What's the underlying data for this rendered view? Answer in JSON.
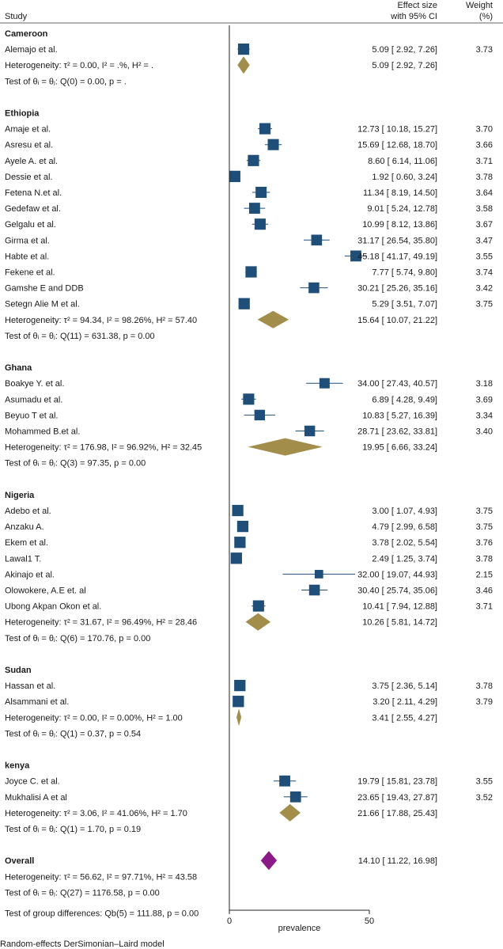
{
  "chart_data": {
    "type": "forest",
    "header": {
      "study": "Study",
      "effect_line1": "Effect size",
      "effect_line2": "with 95% CI",
      "weight_line1": "Weight",
      "weight_line2": "(%)"
    },
    "xaxis": {
      "label": "prevalence",
      "range": [
        0,
        50
      ],
      "ticks": [
        0,
        50
      ],
      "tick_labels": [
        "0",
        "50"
      ]
    },
    "colors": {
      "box": "#1f4e79",
      "ci_line": "#1f4e79",
      "subgroup_diamond": "#a38d4b",
      "overall_diamond": "#8b1a89"
    },
    "groups": [
      {
        "name": "Cameroon",
        "studies": [
          {
            "study": "Alemajo et al.",
            "es": 5.09,
            "lo": 2.92,
            "hi": 7.26,
            "ci_text": "5.09 [  2.92,   7.26]",
            "weight": "3.73"
          }
        ],
        "summary": {
          "es": 5.09,
          "lo": 2.92,
          "hi": 7.26,
          "ci_text": "5.09 [  2.92,   7.26]"
        },
        "heterogeneity": "Heterogeneity: τ² = 0.00, I² = .%, H² = .",
        "test": "Test of θᵢ = θⱼ: Q(0) = 0.00, p = ."
      },
      {
        "name": "Ethiopia",
        "studies": [
          {
            "study": "Amaje et al.",
            "es": 12.73,
            "lo": 10.18,
            "hi": 15.27,
            "ci_text": "12.73 [ 10.18,  15.27]",
            "weight": "3.70"
          },
          {
            "study": "Asresu et al.",
            "es": 15.69,
            "lo": 12.68,
            "hi": 18.7,
            "ci_text": "15.69 [ 12.68,  18.70]",
            "weight": "3.66"
          },
          {
            "study": "Ayele A. et al.",
            "es": 8.6,
            "lo": 6.14,
            "hi": 11.06,
            "ci_text": "8.60 [  6.14,  11.06]",
            "weight": "3.71"
          },
          {
            "study": "Dessie et al.",
            "es": 1.92,
            "lo": 0.6,
            "hi": 3.24,
            "ci_text": "1.92 [  0.60,   3.24]",
            "weight": "3.78"
          },
          {
            "study": "Fetena N.et al.",
            "es": 11.34,
            "lo": 8.19,
            "hi": 14.5,
            "ci_text": "11.34 [  8.19,  14.50]",
            "weight": "3.64"
          },
          {
            "study": "Gedefaw et al.",
            "es": 9.01,
            "lo": 5.24,
            "hi": 12.78,
            "ci_text": "9.01 [  5.24,  12.78]",
            "weight": "3.58"
          },
          {
            "study": "Gelgalu et al.",
            "es": 10.99,
            "lo": 8.12,
            "hi": 13.86,
            "ci_text": "10.99 [  8.12,  13.86]",
            "weight": "3.67"
          },
          {
            "study": "Girma et al.",
            "es": 31.17,
            "lo": 26.54,
            "hi": 35.8,
            "ci_text": "31.17 [ 26.54,  35.80]",
            "weight": "3.47"
          },
          {
            "study": "Habte et al.",
            "es": 45.18,
            "lo": 41.17,
            "hi": 49.19,
            "ci_text": "45.18 [ 41.17,  49.19]",
            "weight": "3.55"
          },
          {
            "study": "Fekene et al.",
            "es": 7.77,
            "lo": 5.74,
            "hi": 9.8,
            "ci_text": "7.77 [  5.74,   9.80]",
            "weight": "3.74"
          },
          {
            "study": "Gamshe E and DDB",
            "es": 30.21,
            "lo": 25.26,
            "hi": 35.16,
            "ci_text": "30.21 [ 25.26,  35.16]",
            "weight": "3.42"
          },
          {
            "study": "Setegn Alie M et al.",
            "es": 5.29,
            "lo": 3.51,
            "hi": 7.07,
            "ci_text": "5.29 [  3.51,   7.07]",
            "weight": "3.75"
          }
        ],
        "summary": {
          "es": 15.64,
          "lo": 10.07,
          "hi": 21.22,
          "ci_text": "15.64 [ 10.07,  21.22]"
        },
        "heterogeneity": "Heterogeneity: τ² = 94.34, I² = 98.26%, H² = 57.40",
        "test": "Test of θᵢ = θⱼ: Q(11) = 631.38, p = 0.00"
      },
      {
        "name": "Ghana",
        "studies": [
          {
            "study": "Boakye Y. et al.",
            "es": 34.0,
            "lo": 27.43,
            "hi": 40.57,
            "ci_text": "34.00 [ 27.43,  40.57]",
            "weight": "3.18"
          },
          {
            "study": "Asumadu et al.",
            "es": 6.89,
            "lo": 4.28,
            "hi": 9.49,
            "ci_text": "6.89 [  4.28,   9.49]",
            "weight": "3.69"
          },
          {
            "study": "Beyuo T et al.",
            "es": 10.83,
            "lo": 5.27,
            "hi": 16.39,
            "ci_text": "10.83 [  5.27,  16.39]",
            "weight": "3.34"
          },
          {
            "study": "Mohammed B.et al.",
            "es": 28.71,
            "lo": 23.62,
            "hi": 33.81,
            "ci_text": "28.71 [ 23.62,  33.81]",
            "weight": "3.40"
          }
        ],
        "summary": {
          "es": 19.95,
          "lo": 6.66,
          "hi": 33.24,
          "ci_text": "19.95 [  6.66,  33.24]"
        },
        "heterogeneity": "Heterogeneity: τ² = 176.98, I² = 96.92%, H² = 32.45",
        "test": "Test of θᵢ = θⱼ: Q(3) = 97.35, p = 0.00"
      },
      {
        "name": "Nigeria",
        "studies": [
          {
            "study": "Adebo et al.",
            "es": 3.0,
            "lo": 1.07,
            "hi": 4.93,
            "ci_text": "3.00 [  1.07,   4.93]",
            "weight": "3.75"
          },
          {
            "study": "Anzaku A.",
            "es": 4.79,
            "lo": 2.99,
            "hi": 6.58,
            "ci_text": "4.79 [  2.99,   6.58]",
            "weight": "3.75"
          },
          {
            "study": "Ekem et al.",
            "es": 3.78,
            "lo": 2.02,
            "hi": 5.54,
            "ci_text": "3.78 [  2.02,   5.54]",
            "weight": "3.76"
          },
          {
            "study": "Lawal1 T.",
            "es": 2.49,
            "lo": 1.25,
            "hi": 3.74,
            "ci_text": "2.49 [  1.25,   3.74]",
            "weight": "3.78"
          },
          {
            "study": "Akinajo et al.",
            "es": 32.0,
            "lo": 19.07,
            "hi": 44.93,
            "ci_text": "32.00 [ 19.07,  44.93]",
            "weight": "2.15"
          },
          {
            "study": "Olowokere, A.E et. al",
            "es": 30.4,
            "lo": 25.74,
            "hi": 35.06,
            "ci_text": "30.40 [ 25.74,  35.06]",
            "weight": "3.46"
          },
          {
            "study": "Ubong Akpan Okon et al.",
            "es": 10.41,
            "lo": 7.94,
            "hi": 12.88,
            "ci_text": "10.41 [  7.94,  12.88]",
            "weight": "3.71"
          }
        ],
        "summary": {
          "es": 10.26,
          "lo": 5.81,
          "hi": 14.72,
          "ci_text": "10.26 [  5.81,  14.72]"
        },
        "heterogeneity": "Heterogeneity: τ² = 31.67, I² = 96.49%, H² = 28.46",
        "test": "Test of θᵢ = θⱼ: Q(6) = 170.76, p = 0.00"
      },
      {
        "name": "Sudan",
        "studies": [
          {
            "study": "Hassan et al.",
            "es": 3.75,
            "lo": 2.36,
            "hi": 5.14,
            "ci_text": "3.75 [  2.36,   5.14]",
            "weight": "3.78"
          },
          {
            "study": "Alsammani et al.",
            "es": 3.2,
            "lo": 2.11,
            "hi": 4.29,
            "ci_text": "3.20 [  2.11,   4.29]",
            "weight": "3.79"
          }
        ],
        "summary": {
          "es": 3.41,
          "lo": 2.55,
          "hi": 4.27,
          "ci_text": "3.41 [  2.55,   4.27]"
        },
        "heterogeneity": "Heterogeneity: τ² = 0.00, I² = 0.00%, H² = 1.00",
        "test": "Test of θᵢ = θⱼ: Q(1) = 0.37, p = 0.54"
      },
      {
        "name": "kenya",
        "studies": [
          {
            "study": "Joyce C. et al.",
            "es": 19.79,
            "lo": 15.81,
            "hi": 23.78,
            "ci_text": "19.79 [ 15.81,  23.78]",
            "weight": "3.55"
          },
          {
            "study": "Mukhalisi A et al",
            "es": 23.65,
            "lo": 19.43,
            "hi": 27.87,
            "ci_text": "23.65 [ 19.43,  27.87]",
            "weight": "3.52"
          }
        ],
        "summary": {
          "es": 21.66,
          "lo": 17.88,
          "hi": 25.43,
          "ci_text": "21.66 [ 17.88,  25.43]"
        },
        "heterogeneity": "Heterogeneity: τ² = 3.06, I² = 41.06%, H² = 1.70",
        "test": "Test of θᵢ = θⱼ: Q(1) = 1.70, p = 0.19"
      }
    ],
    "overall": {
      "name": "Overall",
      "es": 14.1,
      "lo": 11.22,
      "hi": 16.98,
      "ci_text": "14.10 [ 11.22,  16.98]",
      "heterogeneity": "Heterogeneity: τ² = 56.62, I² = 97.71%, H² = 43.58",
      "test": "Test of θᵢ = θⱼ: Q(27) = 1176.58, p = 0.00",
      "group_test": "Test of group differences: Q_b(5) = 111.88, p = 0.00"
    },
    "footnote": "Random-effects DerSimonian–Laird model"
  }
}
